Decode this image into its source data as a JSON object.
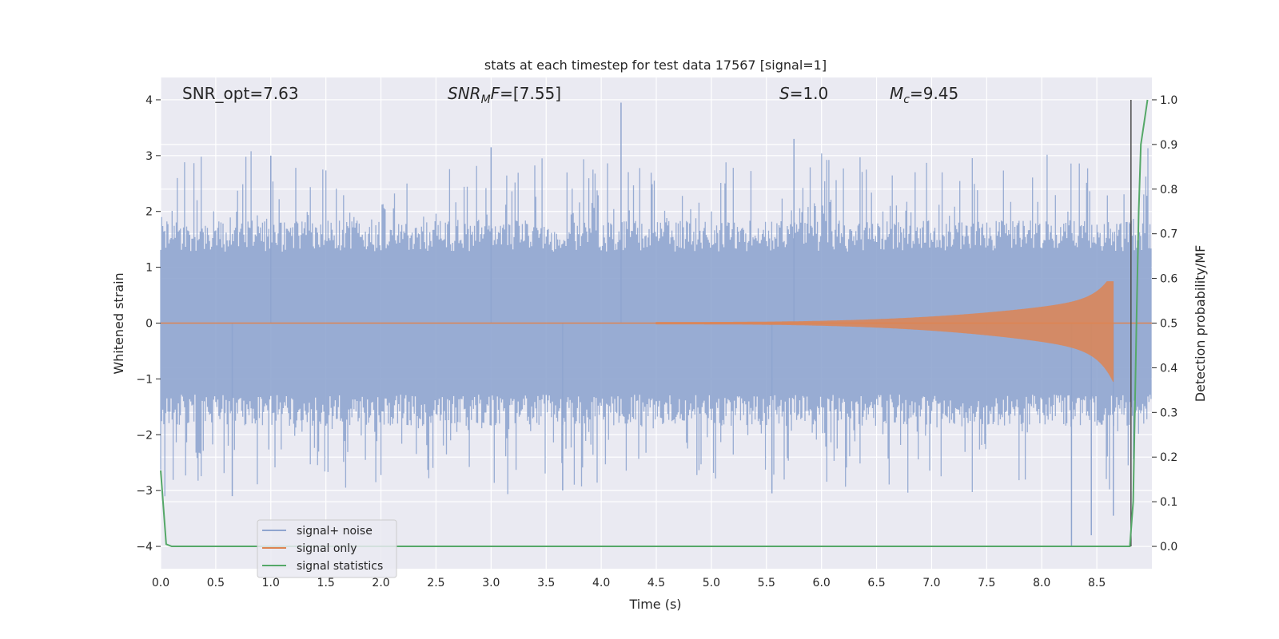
{
  "chart_data": {
    "type": "line",
    "title": "stats at each timestep for test data 17567 [signal=1]",
    "xlabel": "Time (s)",
    "ylabel_left": "Whitened strain",
    "ylabel_right": "Detection probability/MF",
    "xlim": [
      0.0,
      9.0
    ],
    "ylim_left": [
      -4.4,
      4.4
    ],
    "ylim_right": [
      -0.05,
      1.05
    ],
    "x_ticks": [
      "0.0",
      "0.5",
      "1.0",
      "1.5",
      "2.0",
      "2.5",
      "3.0",
      "3.5",
      "4.0",
      "4.5",
      "5.0",
      "5.5",
      "6.0",
      "6.5",
      "7.0",
      "7.5",
      "8.0",
      "8.5"
    ],
    "y_left_ticks": [
      "4",
      "3",
      "2",
      "1",
      "0",
      "−1",
      "−2",
      "−3",
      "−4"
    ],
    "y_right_ticks": [
      "1.0",
      "0.9",
      "0.8",
      "0.7",
      "0.6",
      "0.5",
      "0.4",
      "0.3",
      "0.2",
      "0.1",
      "0.0"
    ],
    "grid": true,
    "legend_position": "lower-left",
    "annotations": [
      {
        "base": "SNR_opt=7.63",
        "sub": "",
        "suffix": "",
        "italic": false
      },
      {
        "base": "SNR",
        "sub": "M",
        "suffix": "F=[7.55]",
        "italic": true
      },
      {
        "base": "S",
        "sub": "",
        "suffix": "=1.0",
        "italic": true
      },
      {
        "base": "M",
        "sub": "c",
        "suffix": "=9.45",
        "italic": true
      }
    ],
    "series": [
      {
        "name": "signal+ noise",
        "color": "#8fa5cf",
        "axis": "left",
        "envelope": {
          "typical_abs": 1.6,
          "peak_max": 3.95,
          "peak_min": -4.0
        }
      },
      {
        "name": "signal only",
        "color": "#dd8452",
        "axis": "left",
        "chirp": {
          "start": 4.5,
          "peak_time": 8.65,
          "peak_max": 0.75,
          "peak_min": -1.15
        }
      },
      {
        "name": "signal statistics",
        "color": "#55a868",
        "axis": "right",
        "x": [
          0.0,
          0.05,
          0.1,
          8.8,
          8.83,
          8.86,
          8.88,
          8.9,
          8.93,
          8.96
        ],
        "y": [
          0.17,
          0.005,
          0.0,
          0.0,
          0.1,
          0.5,
          0.75,
          0.9,
          0.95,
          1.0
        ]
      }
    ],
    "vline": {
      "x": 8.81,
      "color": "#4a4a4a"
    }
  }
}
